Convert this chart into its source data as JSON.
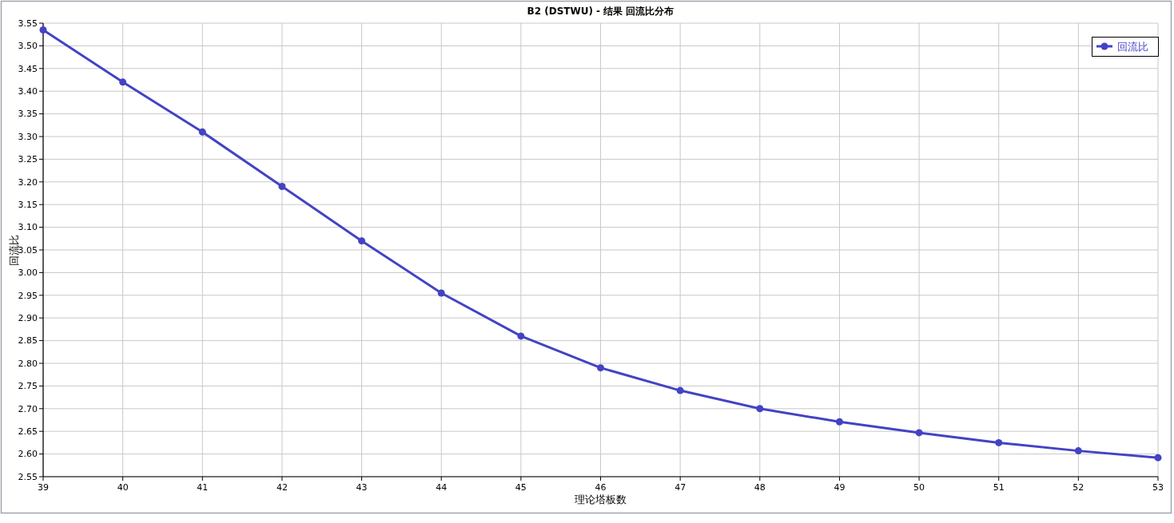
{
  "chart_data": {
    "type": "line",
    "title": "B2 (DSTWU) - 结果 回流比分布",
    "xlabel": "理论塔板数",
    "ylabel": "回流比",
    "x": [
      39,
      40,
      41,
      42,
      43,
      44,
      45,
      46,
      47,
      48,
      49,
      50,
      51,
      52,
      53
    ],
    "series": [
      {
        "name": "回流比",
        "color": "#4343c4",
        "values": [
          3.535,
          3.42,
          3.31,
          3.19,
          3.07,
          2.955,
          2.86,
          2.79,
          2.74,
          2.7,
          2.671,
          2.647,
          2.625,
          2.607,
          2.592
        ]
      }
    ],
    "xlim": [
      39,
      53
    ],
    "xticks": [
      39,
      40,
      41,
      42,
      43,
      44,
      45,
      46,
      47,
      48,
      49,
      50,
      51,
      52,
      53
    ],
    "ylim": [
      2.55,
      3.55
    ],
    "yticks": [
      2.55,
      {
        "value": 2.6,
        "label": "2.60"
      },
      2.65,
      {
        "value": 2.7,
        "label": "2.70"
      },
      2.75,
      {
        "value": 2.8,
        "label": "2.80"
      },
      2.85,
      {
        "value": 2.9,
        "label": "2.90"
      },
      2.95,
      {
        "value": 3,
        "label": "3.00"
      },
      3.05,
      {
        "value": 3.1,
        "label": "3.10"
      },
      3.15,
      {
        "value": 3.2,
        "label": "3.20"
      },
      3.25,
      {
        "value": 3.3,
        "label": "3.30"
      },
      3.35,
      {
        "value": 3.4,
        "label": "3.40"
      },
      3.45,
      {
        "value": 3.5,
        "label": "3.50"
      },
      3.55
    ],
    "grid": true,
    "legend": "top right",
    "marker": "circle",
    "line_style": "solid"
  }
}
